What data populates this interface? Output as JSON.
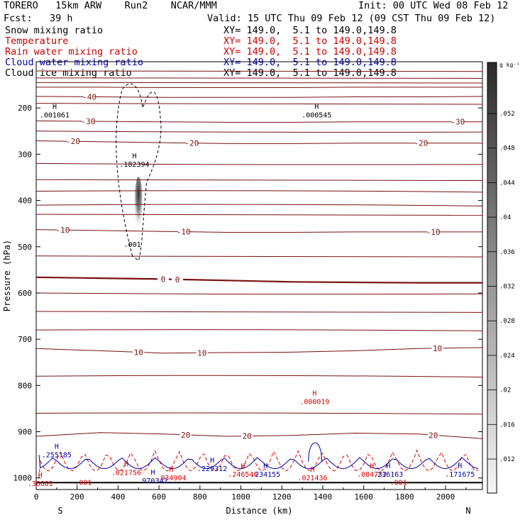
{
  "header": {
    "model": "TORERO   15km ARW    Run2    NCAR/MMM",
    "init": "Init: 00 UTC Wed 08 Feb 12",
    "fcst": "Fcst:   39 h",
    "valid": "Valid: 15 UTC Thu 09 Feb 12 (09 CST Thu 09 Feb 12)",
    "fields": [
      {
        "name": "Snow mixing ratio",
        "xy": "XY= 149.0,  5.1 to 149.0,149.8",
        "color": "#000000"
      },
      {
        "name": "Temperature",
        "xy": "XY= 149.0,  5.1 to 149.0,149.8",
        "color": "#cc0000"
      },
      {
        "name": "Rain water mixing ratio",
        "xy": "XY= 149.0,  5.1 to 149.0,149.8",
        "color": "#cc0000"
      },
      {
        "name": "Cloud water mixing ratio",
        "xy": "XY= 149.0,  5.1 to 149.0,149.8",
        "color": "#0000aa"
      },
      {
        "name": "Cloud ice mixing ratio",
        "xy": "XY= 149.0,  5.1 to 149.0,149.8",
        "color": "#000000"
      }
    ]
  },
  "chart_data": {
    "type": "cross-section",
    "xlabel": "Distance (km)",
    "ylabel": "Pressure (hPa)",
    "xlim": [
      0,
      2180
    ],
    "ylim": [
      1025,
      100
    ],
    "xticks": [
      0,
      200,
      400,
      600,
      800,
      1000,
      1200,
      1400,
      1600,
      1800,
      2000
    ],
    "yticks": [
      200,
      300,
      400,
      500,
      600,
      700,
      800,
      900,
      1000
    ],
    "x_end_labels": {
      "left": "S",
      "right": "N"
    },
    "colorbar": {
      "unit": "g kg⁻¹",
      "ticks": [
        ".052",
        ".048",
        ".044",
        ".04",
        ".036",
        ".032",
        ".028",
        ".024",
        ".02",
        ".016",
        ".012"
      ],
      "colors": {
        "dark": "#303030",
        "light": "#f4f4f4"
      }
    },
    "temperature_contours": [
      {
        "level": -40,
        "y_p": [
          155,
          155,
          156,
          156,
          156,
          155,
          155,
          155
        ]
      },
      {
        "level": -40,
        "y_p": [
          175,
          176,
          177,
          177,
          177,
          176,
          176,
          175
        ],
        "label": "-40",
        "label_x": 260
      },
      {
        "level": -30,
        "y_p": [
          228,
          229,
          230,
          231,
          231,
          230,
          230,
          230
        ],
        "labels": [
          "-30",
          "-30"
        ],
        "label_x": [
          255,
          2060
        ]
      },
      {
        "level": -20,
        "y_p": [
          271,
          273,
          275,
          277,
          277,
          276,
          276,
          276
        ],
        "labels": [
          "-20",
          "-20",
          "-20"
        ],
        "label_x": [
          180,
          760,
          1880
        ]
      },
      {
        "level": -10,
        "y_p": [
          463,
          465,
          467,
          469,
          469,
          468,
          468,
          468
        ],
        "labels": [
          "-10",
          "-10",
          "-10"
        ],
        "label_x": [
          130,
          720,
          1940
        ]
      },
      {
        "level": 0,
        "y_p": [
          566,
          568,
          570,
          573,
          576,
          577,
          578,
          578
        ],
        "labels": [
          "0",
          "0"
        ],
        "label_x": [
          620,
          690
        ],
        "bold": true
      },
      {
        "level": 10,
        "y_p": [
          720,
          725,
          730,
          729,
          728,
          725,
          720,
          718
        ],
        "labels": [
          "10",
          "10",
          "10"
        ],
        "label_x": [
          500,
          810,
          1960
        ]
      },
      {
        "level": 20,
        "y_p": [
          910,
          902,
          905,
          910,
          908,
          903,
          905,
          915
        ],
        "labels": [
          "20",
          "20",
          "20"
        ],
        "label_x": [
          730,
          1030,
          1940
        ]
      }
    ],
    "maxima": [
      {
        "type": "H",
        "value": ".001061",
        "field": "ice",
        "x_km": 90,
        "p": 205
      },
      {
        "type": "H",
        "value": ".000545",
        "field": "ice",
        "x_km": 1370,
        "p": 205
      },
      {
        "type": "H",
        "value": ".182394",
        "field": "snow",
        "x_km": 480,
        "p": 312
      },
      {
        "type": "H",
        "value": ".000019",
        "field": "rain",
        "x_km": 1360,
        "p": 825
      },
      {
        "type": "H",
        "value": ".255185",
        "field": "cloud",
        "x_km": 100,
        "p": 940
      },
      {
        "type": "H",
        "value": ".021756",
        "field": "rain",
        "x_km": 440,
        "p": 978
      },
      {
        "type": "H",
        "value": ".970342",
        "field": "cloud",
        "x_km": 570,
        "p": 996
      },
      {
        "type": "H",
        "value": ".034904",
        "field": "rain",
        "x_km": 660,
        "p": 990
      },
      {
        "type": "H",
        "value": ".229312",
        "field": "cloud",
        "x_km": 860,
        "p": 970
      },
      {
        "type": "H",
        "value": ".246546",
        "field": "rain",
        "x_km": 1010,
        "p": 982
      },
      {
        "type": "H",
        "value": ".234155",
        "field": "cloud",
        "x_km": 1120,
        "p": 982
      },
      {
        "type": "H",
        "value": ".021436",
        "field": "rain",
        "x_km": 1350,
        "p": 990
      },
      {
        "type": "H",
        "value": ".084752",
        "field": "rain",
        "x_km": 1640,
        "p": 982
      },
      {
        "type": "H",
        "value": ".236163",
        "field": "cloud",
        "x_km": 1720,
        "p": 982
      },
      {
        "type": "H",
        "value": ".171675",
        "field": "cloud",
        "x_km": 2070,
        "p": 982
      },
      {
        "type": "H",
        "value": ".36681",
        "field": "rain",
        "x_km": 20,
        "p": 1002
      }
    ],
    "contour_labels": [
      {
        "value": ".001",
        "field": "snow",
        "x_km": 470,
        "p": 500
      },
      {
        "value": ".001",
        "field": "rain",
        "x_km": 230,
        "p": 1015
      },
      {
        "value": ".001",
        "field": "rain",
        "x_km": 1770,
        "p": 1015
      }
    ]
  }
}
